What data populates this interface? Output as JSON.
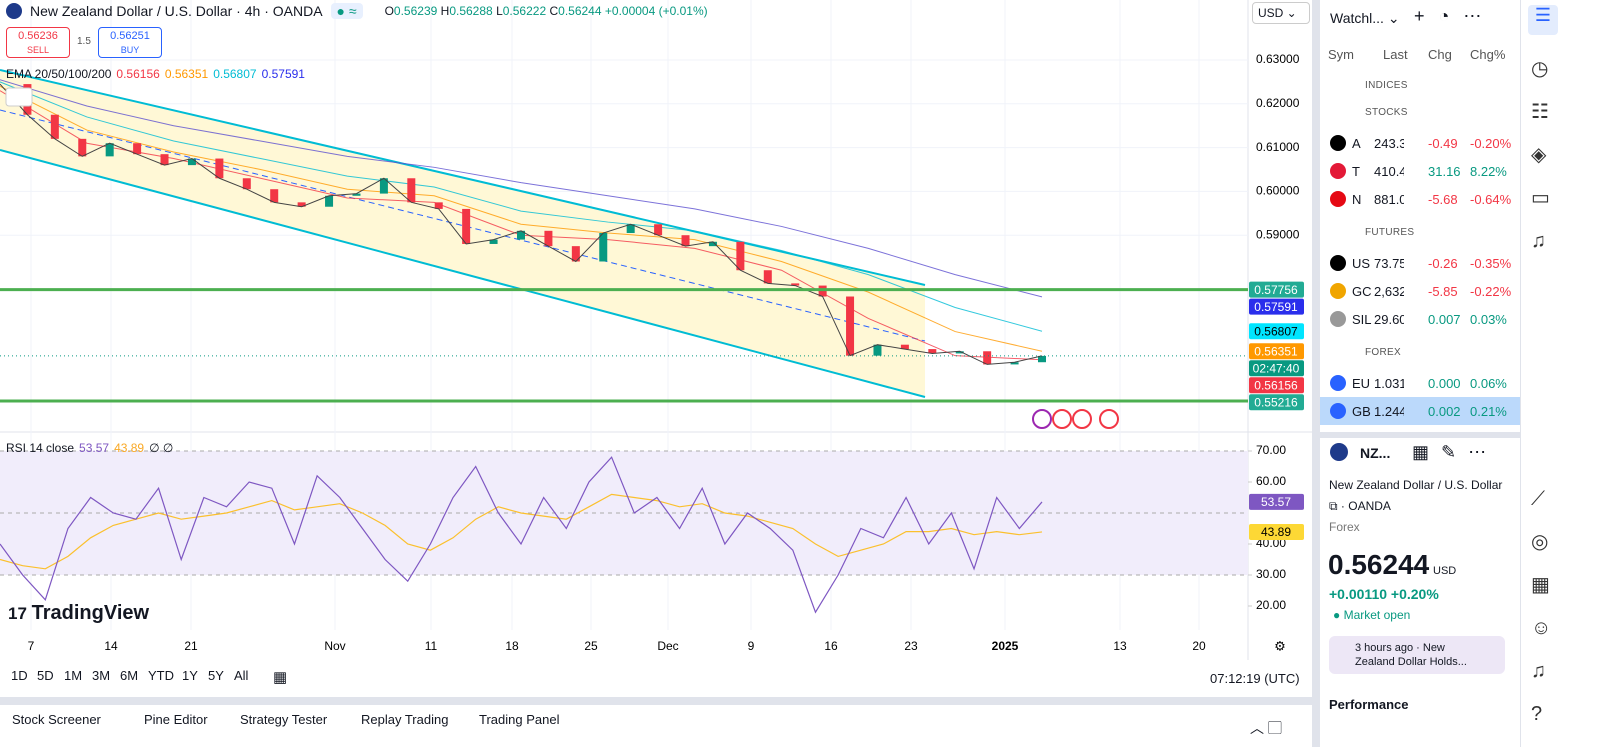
{
  "header": {
    "symbol": "New Zealand Dollar / U.S. Dollar · 4h · OANDA",
    "o_label": "O",
    "o": "0.56239",
    "h_label": "H",
    "h": "0.56288",
    "l_label": "L",
    "l": "0.56222",
    "c_label": "C",
    "c": "0.56244",
    "change": "+0.00004 (+0.01%)",
    "currency": "USD"
  },
  "trade": {
    "sell_price": "0.56236",
    "sell": "SELL",
    "spread": "1.5",
    "buy_price": "0.56251",
    "buy": "BUY"
  },
  "ema_legend": {
    "label": "EMA 20/50/100/200",
    "values": [
      "0.56156",
      "0.56351",
      "0.56807",
      "0.57591"
    ]
  },
  "chart": {
    "type": "candlestick",
    "yticks": [
      {
        "value": 0.63,
        "label": "0.63000"
      },
      {
        "value": 0.62,
        "label": "0.62000"
      },
      {
        "value": 0.61,
        "label": "0.61000"
      },
      {
        "value": 0.6,
        "label": "0.60000"
      },
      {
        "value": 0.59,
        "label": "0.59000"
      }
    ],
    "closes": [
      0.6245,
      0.6175,
      0.612,
      0.608,
      0.611,
      0.6085,
      0.606,
      0.6075,
      0.603,
      0.6005,
      0.5975,
      0.5965,
      0.599,
      0.5995,
      0.603,
      0.5975,
      0.596,
      0.588,
      0.589,
      0.591,
      0.5875,
      0.584,
      0.5905,
      0.5925,
      0.59,
      0.5875,
      0.5885,
      0.582,
      0.579,
      0.5785,
      0.576,
      0.5625,
      0.565,
      0.564,
      0.563,
      0.5635,
      0.5605,
      0.561,
      0.56244
    ],
    "ema": [
      {
        "name": "EMA 20",
        "color": "#f23645",
        "values": [
          0.623,
          0.611,
          0.6075,
          0.603,
          0.5985,
          0.5975,
          0.59,
          0.589,
          0.587,
          0.582,
          0.571,
          0.5625,
          0.56156
        ]
      },
      {
        "name": "EMA 50",
        "color": "#ff9800",
        "values": [
          0.624,
          0.614,
          0.609,
          0.605,
          0.6005,
          0.599,
          0.5925,
          0.5905,
          0.589,
          0.584,
          0.577,
          0.568,
          0.56351
        ]
      },
      {
        "name": "EMA 100",
        "color": "#00bcd4",
        "values": [
          0.625,
          0.617,
          0.6115,
          0.6075,
          0.6035,
          0.601,
          0.5955,
          0.593,
          0.591,
          0.5865,
          0.581,
          0.5735,
          0.56807
        ]
      },
      {
        "name": "EMA 200",
        "color": "#5b4fcf",
        "values": [
          0.6255,
          0.6195,
          0.615,
          0.6115,
          0.608,
          0.6055,
          0.602,
          0.599,
          0.596,
          0.592,
          0.587,
          0.581,
          0.57591
        ]
      }
    ],
    "levels": [
      0.57756,
      0.55216
    ],
    "badges": [
      {
        "value": 0.57756,
        "color": "#22ab94"
      },
      {
        "value": 0.57591,
        "color": "#2a2eec"
      },
      {
        "value": 0.56807,
        "color": "#00e5ff"
      },
      {
        "value": 0.56351,
        "color": "#ff9800"
      },
      {
        "value": 0.56244,
        "label": "02:47:40",
        "color": "#089981"
      },
      {
        "value": 0.56156,
        "color": "#f23645"
      },
      {
        "value": 0.55216,
        "color": "#22ab94"
      }
    ],
    "dates": [
      "7",
      "14",
      "21",
      "Nov",
      "11",
      "18",
      "25",
      "Dec",
      "9",
      "16",
      "23",
      "2025",
      "13",
      "20"
    ]
  },
  "rsi": {
    "legend": "RSI 14 close",
    "value_text": "53.57",
    "ma_text": "43.89",
    "extra": "∅ ∅",
    "yticks": [
      {
        "value": 70,
        "label": "70.00"
      },
      {
        "value": 60,
        "label": "60.00"
      },
      {
        "value": 40,
        "label": "40.00"
      },
      {
        "value": 30,
        "label": "30.00"
      },
      {
        "value": 20,
        "label": "20.00"
      }
    ],
    "values": [
      40,
      30,
      22,
      45,
      55,
      50,
      48,
      58,
      35,
      55,
      52,
      60,
      58,
      40,
      62,
      55,
      45,
      35,
      28,
      40,
      55,
      65,
      50,
      40,
      55,
      45,
      60,
      68,
      50,
      55,
      45,
      58,
      40,
      50,
      45,
      38,
      18,
      30,
      45,
      42,
      55,
      40,
      50,
      32,
      55,
      45,
      53.57
    ],
    "ma": [
      35,
      33,
      32,
      36,
      42,
      46,
      48,
      50,
      48,
      49,
      50,
      52,
      54,
      51,
      52,
      53,
      50,
      46,
      40,
      38,
      42,
      48,
      52,
      50,
      49,
      48,
      52,
      56,
      55,
      54,
      52,
      53,
      50,
      49,
      47,
      45,
      40,
      36,
      38,
      40,
      44,
      44,
      45,
      43,
      44,
      43,
      43.89
    ],
    "badges": [
      {
        "value": 53.57,
        "color": "#7e57c2"
      },
      {
        "value": 43.89,
        "color": "#fdd835"
      }
    ]
  },
  "logo": "TradingView",
  "periods": [
    "1D",
    "5D",
    "1M",
    "3M",
    "6M",
    "YTD",
    "1Y",
    "5Y",
    "All"
  ],
  "clock": "07:12:19 (UTC)",
  "tabs": [
    "Stock Screener",
    "Pine Editor",
    "Strategy Tester",
    "Replay Trading",
    "Trading Panel"
  ],
  "watchlist": {
    "title": "Watchl...",
    "columns": [
      "Sym",
      "Last",
      "Chg",
      "Chg%"
    ],
    "sections": [
      "INDICES",
      "STOCKS",
      "FUTURES",
      "FOREX"
    ],
    "rows": [
      [
        "A",
        "243.3",
        "-0.49",
        "-0.20%"
      ],
      [
        "T",
        "410.4",
        "31.16",
        "8.22%"
      ],
      [
        "N",
        "881.0",
        "-5.68",
        "-0.64%"
      ],
      [
        "US",
        "73.75",
        "-0.26",
        "-0.35%"
      ],
      [
        "GC",
        "2,632",
        "-5.85",
        "-0.22%"
      ],
      [
        "SIL",
        "29.60",
        "0.007",
        "0.03%"
      ],
      [
        "EU",
        "1.031",
        "0.000",
        "0.06%"
      ],
      [
        "GB",
        "1.244",
        "0.002",
        "0.21%"
      ]
    ]
  },
  "details": {
    "symbol": "NZ...",
    "name": "New Zealand Dollar / U.S. Dollar",
    "exchange": "OANDA",
    "kind": "Forex",
    "price": "0.56244",
    "currency": "USD",
    "change": "+0.00110",
    "change_pct": "+0.20%",
    "status": "Market open",
    "news": "3 hours ago · New Zealand Dollar Holds...",
    "performance": "Performance"
  }
}
